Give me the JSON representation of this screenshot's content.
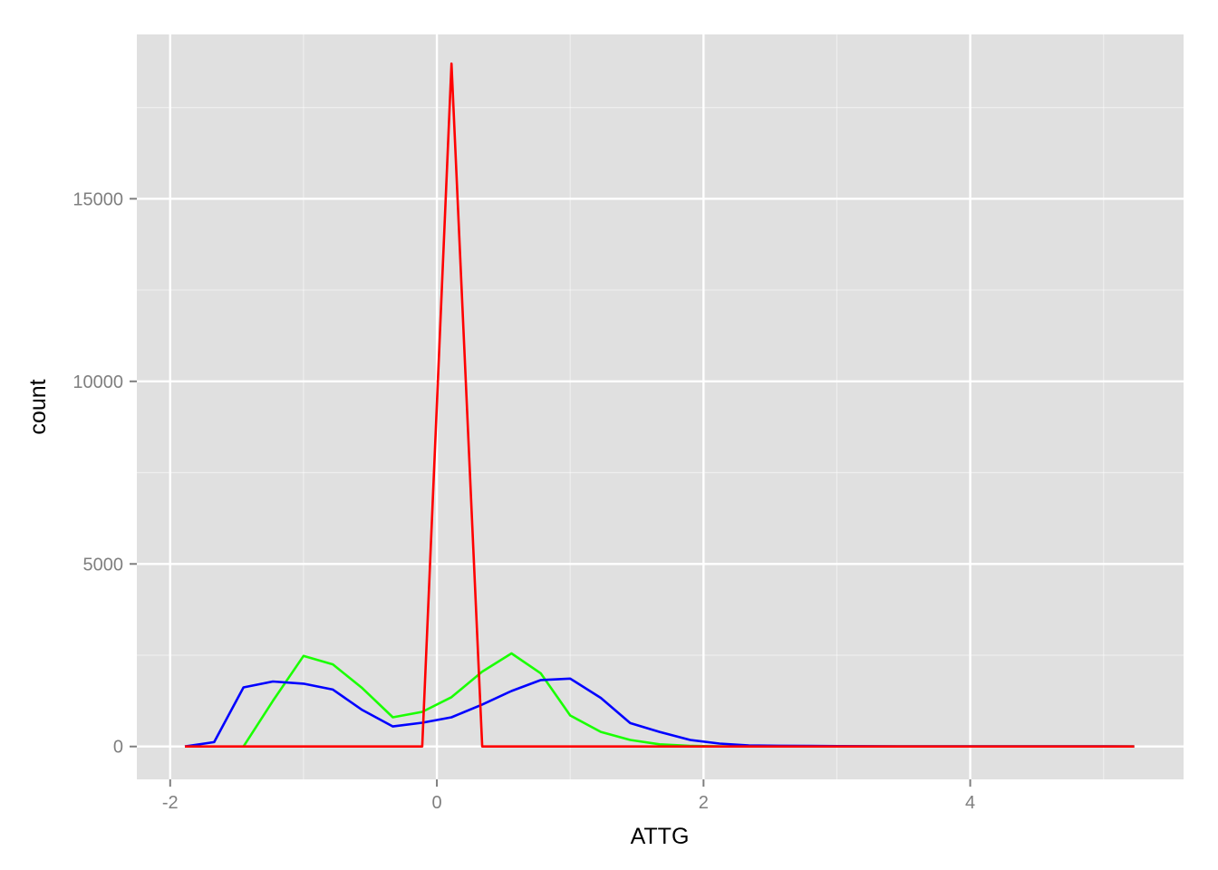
{
  "chart_data": {
    "type": "line",
    "title": "",
    "xlabel": "ATTG",
    "ylabel": "count",
    "xlim": [
      -2.25,
      5.6
    ],
    "ylim": [
      -900,
      19500
    ],
    "x_ticks": [
      -2,
      0,
      2,
      4
    ],
    "x_tick_labels": [
      "-2",
      "0",
      "2",
      "4"
    ],
    "y_ticks": [
      0,
      5000,
      10000,
      15000
    ],
    "y_tick_labels": [
      "0",
      "5000",
      "10000",
      "15000"
    ],
    "x_minor_ticks": [
      -1,
      1,
      3,
      5
    ],
    "y_minor_ticks": [
      2500,
      7500,
      12500,
      17500
    ],
    "grid": true,
    "panel_background": "#e0e0e0",
    "grid_color": "#ffffff",
    "legend": "none",
    "series": [
      {
        "name": "green",
        "color": "#1aff00",
        "x": [
          -1.45,
          -1.23,
          -1.0,
          -0.78,
          -0.56,
          -0.33,
          -0.11,
          0.11,
          0.34,
          0.56,
          0.78,
          1.0,
          1.23,
          1.45,
          1.67,
          1.9,
          2.12,
          2.34,
          2.56,
          2.79,
          3.01,
          3.23,
          3.45,
          3.68,
          3.9,
          4.12,
          4.34,
          4.57,
          4.79,
          5.01,
          5.23
        ],
        "y": [
          0,
          1250,
          2480,
          2250,
          1600,
          800,
          950,
          1350,
          2050,
          2550,
          2000,
          850,
          400,
          180,
          60,
          15,
          5,
          0,
          0,
          0,
          0,
          0,
          0,
          0,
          0,
          0,
          0,
          0,
          0,
          0,
          0
        ]
      },
      {
        "name": "blue",
        "color": "#0000ff",
        "x": [
          -1.89,
          -1.67,
          -1.45,
          -1.23,
          -1.0,
          -0.78,
          -0.56,
          -0.33,
          -0.11,
          0.11,
          0.34,
          0.56,
          0.78,
          1.0,
          1.23,
          1.45,
          1.67,
          1.9,
          2.12,
          2.34,
          2.56,
          2.79,
          3.01,
          3.23,
          3.45,
          3.68,
          3.9,
          4.12,
          4.34,
          4.57,
          4.79,
          5.01,
          5.23
        ],
        "y": [
          0,
          120,
          1620,
          1780,
          1720,
          1560,
          1000,
          550,
          650,
          800,
          1150,
          1520,
          1820,
          1860,
          1330,
          640,
          400,
          180,
          80,
          30,
          20,
          15,
          10,
          8,
          5,
          5,
          5,
          3,
          3,
          5,
          3,
          3,
          0
        ]
      },
      {
        "name": "red",
        "color": "#ff0000",
        "x": [
          -1.89,
          -0.11,
          0.11,
          0.34,
          5.23
        ],
        "y": [
          0,
          0,
          18700,
          0,
          0
        ]
      }
    ]
  }
}
